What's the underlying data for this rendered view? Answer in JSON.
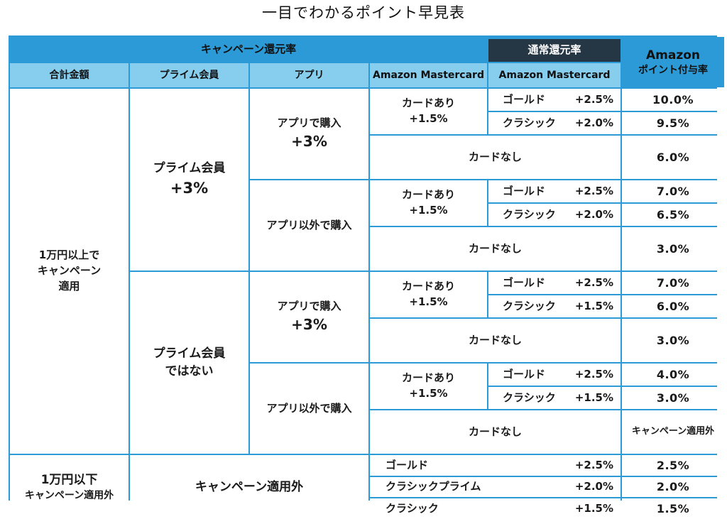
{
  "title": "一目でわかるポイント早見表",
  "header": {
    "campaign_rate": "キャンペーン還元率",
    "normal_rate": "通常還元率",
    "amazon_rate_line1": "Amazon",
    "amazon_rate_line2": "ポイント付与率",
    "col_total": "合計金額",
    "col_prime": "プライム会員",
    "col_app": "アプリ",
    "col_mc_campaign": "Amazon Mastercard",
    "col_mc_normal": "Amazon Mastercard"
  },
  "labels": {
    "campaign_applied_line1": "1万円以上で",
    "campaign_applied_line2": "キャンペーン",
    "campaign_applied_line3": "適用",
    "prime_member": "プライム会員",
    "prime_bonus": "+3%",
    "non_prime_line1": "プライム会員",
    "non_prime_line2": "ではない",
    "app_purchase": "アプリで購入",
    "app_bonus": "+3%",
    "non_app_purchase": "アプリ以外で購入",
    "card_yes": "カードあり",
    "card_bonus": "+1.5%",
    "card_no": "カードなし",
    "gold": "ゴールド",
    "classic": "クラシック",
    "classic_prime": "クラシックプライム",
    "under_line1": "1万円以下",
    "under_line2": "キャンペーン適用外",
    "not_applied": "キャンペーン適用外"
  },
  "groups": [
    {
      "gold_pct": "+2.5%",
      "classic_pct": "+2.0%",
      "gold_rate": "10.0%",
      "classic_rate": "9.5%",
      "no_card_rate": "6.0%"
    },
    {
      "gold_pct": "+2.5%",
      "classic_pct": "+2.0%",
      "gold_rate": "7.0%",
      "classic_rate": "6.5%",
      "no_card_rate": "3.0%"
    },
    {
      "gold_pct": "+2.5%",
      "classic_pct": "+1.5%",
      "gold_rate": "7.0%",
      "classic_rate": "6.0%",
      "no_card_rate": "3.0%"
    },
    {
      "gold_pct": "+2.5%",
      "classic_pct": "+1.5%",
      "gold_rate": "4.0%",
      "classic_rate": "3.0%",
      "no_card_rate": "キャンペーン適用外"
    }
  ],
  "under_rows": [
    {
      "tier": "ゴールド",
      "pct": "+2.5%",
      "rate": "2.5%"
    },
    {
      "tier": "クラシックプライム",
      "pct": "+2.0%",
      "rate": "2.0%"
    },
    {
      "tier": "クラシック",
      "pct": "+1.5%",
      "rate": "1.5%"
    }
  ],
  "colors": {
    "header_blue": "#2c9ad6",
    "subheader_blue": "#86cdee",
    "dark_header": "#253645"
  }
}
